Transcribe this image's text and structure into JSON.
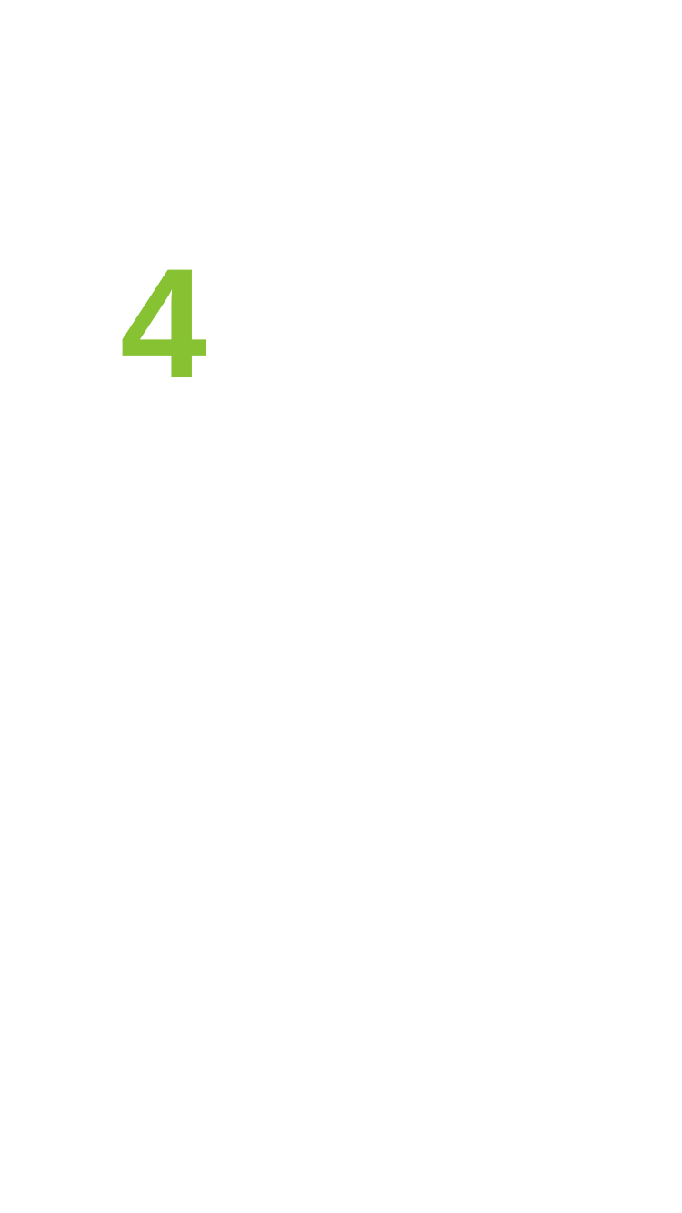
{
  "screen": {
    "number_text": "4",
    "accent_color": "#86c232",
    "background_color": "#ffffff"
  }
}
